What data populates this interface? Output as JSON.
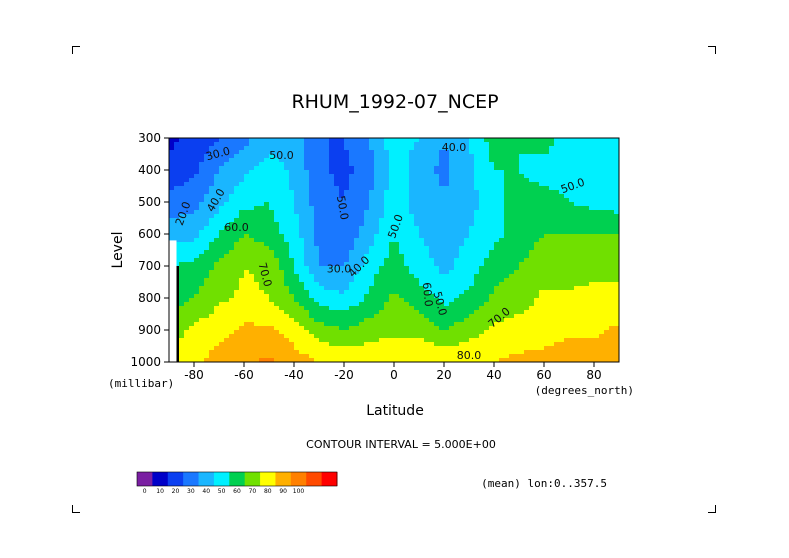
{
  "chart_data": {
    "type": "heatmap",
    "title": "RHUM_1992-07_NCEP",
    "xlabel": "Latitude",
    "ylabel": "Level",
    "x_units": "(degrees_north)",
    "y_units": "(millibar)",
    "footer": "CONTOUR INTERVAL = 5.000E+00",
    "note": "(mean) lon:0..357.5",
    "xlim": [
      -90,
      90
    ],
    "ylim": [
      1000,
      300
    ],
    "xticks": [
      "-80",
      "-60",
      "-40",
      "-20",
      "0",
      "20",
      "40",
      "60",
      "80"
    ],
    "yticks": [
      "300",
      "400",
      "500",
      "600",
      "700",
      "800",
      "900",
      "1000"
    ],
    "x": [
      -90,
      -80,
      -70,
      -60,
      -50,
      -40,
      -30,
      -20,
      -10,
      0,
      10,
      20,
      30,
      40,
      50,
      60,
      70,
      80,
      90
    ],
    "levels": [
      300,
      400,
      500,
      600,
      700,
      800,
      900,
      1000
    ],
    "z": [
      [
        8,
        12,
        20,
        27,
        35,
        35,
        20,
        20,
        30,
        45,
        40,
        30,
        40,
        55,
        50,
        55,
        45,
        40,
        40
      ],
      [
        12,
        18,
        30,
        38,
        45,
        38,
        22,
        17,
        25,
        45,
        35,
        27,
        37,
        50,
        50,
        45,
        45,
        40,
        40
      ],
      [
        25,
        27,
        37,
        47,
        50,
        40,
        25,
        20,
        30,
        45,
        35,
        32,
        37,
        45,
        55,
        55,
        50,
        47,
        45
      ],
      [
        35,
        37,
        50,
        60,
        55,
        45,
        27,
        22,
        35,
        50,
        40,
        35,
        40,
        47,
        55,
        60,
        60,
        60,
        60
      ],
      [
        50,
        52,
        62,
        70,
        68,
        50,
        30,
        30,
        45,
        55,
        45,
        37,
        45,
        55,
        60,
        65,
        65,
        68,
        68
      ],
      [
        55,
        60,
        68,
        72,
        70,
        60,
        45,
        42,
        52,
        62,
        55,
        47,
        52,
        62,
        65,
        72,
        72,
        72,
        72
      ],
      [
        65,
        72,
        77,
        82,
        82,
        75,
        65,
        60,
        65,
        68,
        68,
        60,
        65,
        72,
        75,
        77,
        78,
        78,
        82
      ],
      [
        70,
        77,
        85,
        88,
        92,
        85,
        80,
        78,
        78,
        78,
        78,
        78,
        80,
        80,
        82,
        82,
        85,
        85,
        88
      ]
    ],
    "contour_labels": [
      "30.0",
      "50.0",
      "40.0",
      "20.0",
      "60.0",
      "50.0",
      "70.0",
      "30.0",
      "40.0",
      "60.0",
      "50.0",
      "50.0",
      "70.0",
      "80.0",
      "50.0",
      "40.0"
    ],
    "colorbar": {
      "ticks": [
        "0",
        "10",
        "20",
        "30",
        "40",
        "50",
        "60",
        "70",
        "80",
        "90",
        "100"
      ],
      "colors": [
        "#7a1fa2",
        "#0000c8",
        "#0b3ff0",
        "#1a78ff",
        "#1ab6ff",
        "#00f0ff",
        "#00d050",
        "#70e000",
        "#ffff00",
        "#ffb000",
        "#ff8000",
        "#ff4a00",
        "#ff0000"
      ]
    }
  }
}
